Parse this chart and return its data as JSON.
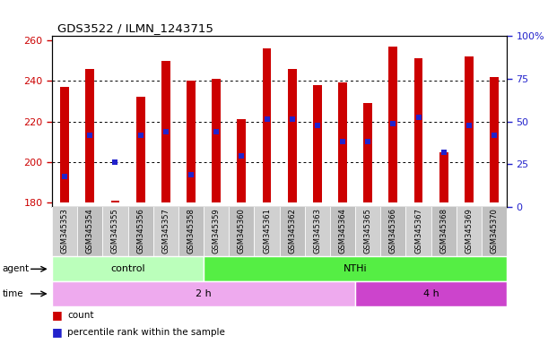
{
  "title": "GDS3522 / ILMN_1243715",
  "samples": [
    "GSM345353",
    "GSM345354",
    "GSM345355",
    "GSM345356",
    "GSM345357",
    "GSM345358",
    "GSM345359",
    "GSM345360",
    "GSM345361",
    "GSM345362",
    "GSM345363",
    "GSM345364",
    "GSM345365",
    "GSM345366",
    "GSM345367",
    "GSM345368",
    "GSM345369",
    "GSM345370"
  ],
  "bar_tops": [
    237,
    246,
    181,
    232,
    250,
    240,
    241,
    221,
    256,
    246,
    238,
    239,
    229,
    257,
    251,
    205,
    252,
    242
  ],
  "bar_bottom": 180,
  "dot_values": [
    193,
    213,
    200,
    213,
    215,
    194,
    215,
    203,
    221,
    221,
    218,
    210,
    210,
    219,
    222,
    205,
    218,
    213
  ],
  "ylim_left": [
    178,
    262
  ],
  "ylim_right": [
    0,
    100
  ],
  "yticks_left": [
    180,
    200,
    220,
    240,
    260
  ],
  "yticks_right": [
    0,
    25,
    50,
    75,
    100
  ],
  "bar_color": "#cc0000",
  "dot_color": "#2222cc",
  "col_bg_even": "#cccccc",
  "col_bg_odd": "#bbbbbb",
  "plot_bg": "#ffffff",
  "agent_groups": [
    {
      "label": "control",
      "start": 0,
      "end": 6,
      "color": "#bbffbb"
    },
    {
      "label": "NTHi",
      "start": 6,
      "end": 18,
      "color": "#55ee44"
    }
  ],
  "time_groups": [
    {
      "label": "2 h",
      "start": 0,
      "end": 12,
      "color": "#eeaaee"
    },
    {
      "label": "4 h",
      "start": 12,
      "end": 18,
      "color": "#cc44cc"
    }
  ],
  "left_tick_color": "#cc0000",
  "right_tick_color": "#2222cc",
  "legend_count_label": "count",
  "legend_dot_label": "percentile rank within the sample"
}
